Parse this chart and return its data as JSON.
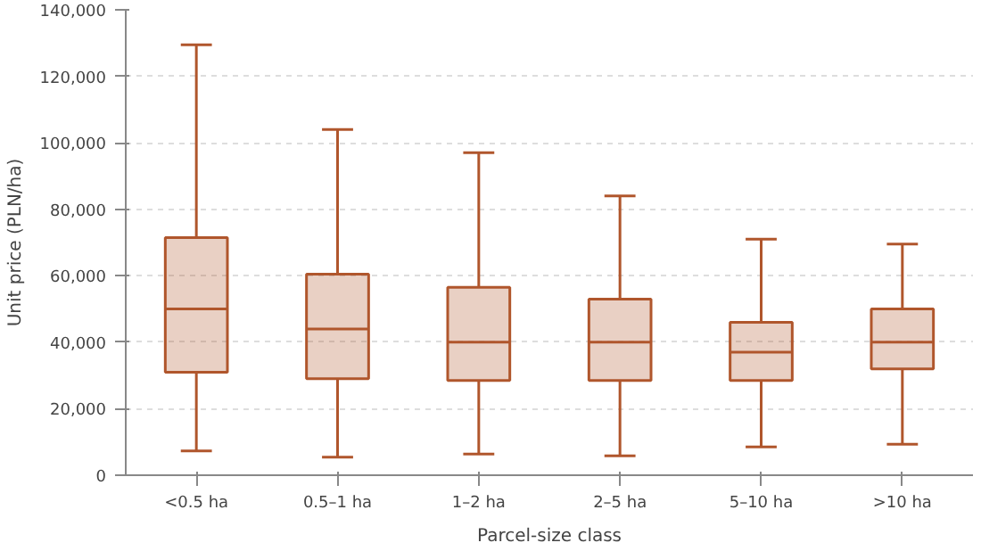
{
  "chart_data": {
    "type": "box",
    "xlabel": "Parcel-size class",
    "ylabel": "Unit price (PLN/ha)",
    "categories": [
      "<0.5 ha",
      "0.5–1 ha",
      "1–2 ha",
      "2–5 ha",
      "5–10 ha",
      ">10 ha"
    ],
    "boxes": [
      {
        "low": 7300,
        "q1": 31000,
        "median": 50000,
        "q3": 71500,
        "high": 129500
      },
      {
        "low": 5400,
        "q1": 29000,
        "median": 44000,
        "q3": 60500,
        "high": 104000
      },
      {
        "low": 6400,
        "q1": 28500,
        "median": 40000,
        "q3": 56500,
        "high": 97000
      },
      {
        "low": 5800,
        "q1": 28500,
        "median": 40000,
        "q3": 53000,
        "high": 84000
      },
      {
        "low": 8500,
        "q1": 28500,
        "median": 37000,
        "q3": 46000,
        "high": 71000
      },
      {
        "low": 9300,
        "q1": 32000,
        "median": 40000,
        "q3": 50000,
        "high": 69500
      }
    ],
    "color": "#b0562c",
    "ylim": [
      0,
      140000
    ],
    "yticks": [
      {
        "value": 0,
        "label": "0"
      },
      {
        "value": 20000,
        "label": "20,000"
      },
      {
        "value": 40000,
        "label": "40,000"
      },
      {
        "value": 60000,
        "label": "60,000"
      },
      {
        "value": 80000,
        "label": "80,000"
      },
      {
        "value": 100000,
        "label": "100,000"
      },
      {
        "value": 120000,
        "label": "120,000"
      },
      {
        "value": 140000,
        "label": "140,000"
      }
    ],
    "grid": "y"
  }
}
